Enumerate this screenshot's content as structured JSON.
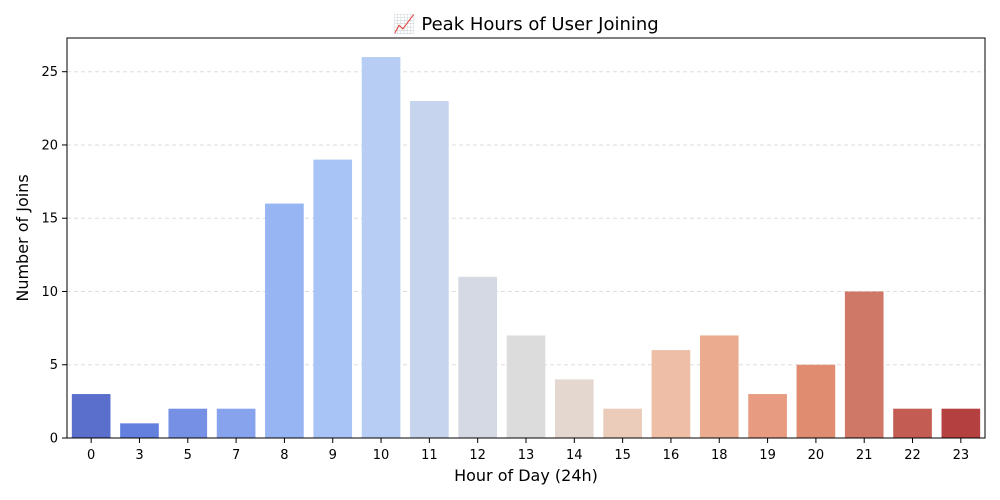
{
  "chart_data": {
    "type": "bar",
    "title": "📈 Peak Hours of User Joining",
    "xlabel": "Hour of Day (24h)",
    "ylabel": "Number of Joins",
    "categories": [
      "0",
      "3",
      "5",
      "7",
      "8",
      "9",
      "10",
      "11",
      "12",
      "13",
      "14",
      "15",
      "16",
      "18",
      "19",
      "20",
      "21",
      "22",
      "23"
    ],
    "values": [
      3,
      1,
      2,
      2,
      16,
      19,
      26,
      23,
      11,
      7,
      4,
      2,
      6,
      7,
      3,
      5,
      10,
      2,
      2
    ],
    "colors": [
      "#5a6fcb",
      "#6480de",
      "#7690e6",
      "#87a3ee",
      "#97b4f3",
      "#a8c3f5",
      "#b7cdf3",
      "#c6d4ee",
      "#d4d9e3",
      "#dcdcdc",
      "#e4d7cf",
      "#ebcbb9",
      "#eebea6",
      "#ebab8e",
      "#e79c81",
      "#df8c71",
      "#d07868",
      "#c35c53",
      "#b4403f"
    ],
    "yticks": [
      0,
      5,
      10,
      15,
      20,
      25
    ],
    "ylim": [
      0,
      27.3
    ],
    "grid": true,
    "legend": "none"
  }
}
